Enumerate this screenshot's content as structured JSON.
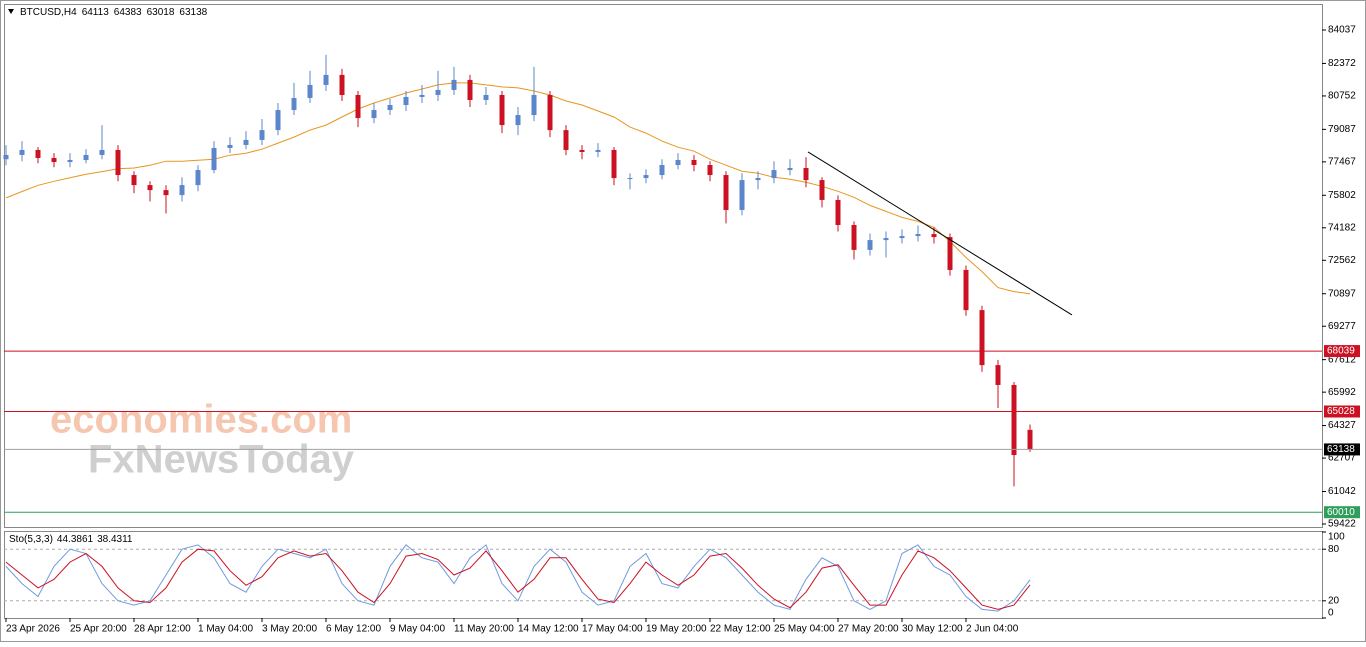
{
  "chart_data": {
    "type": "candlestick",
    "title": "BTCUSD,H4",
    "xlim": [
      -0.125,
      82.25
    ],
    "xticks": [
      {
        "value": 0,
        "label": "23 Apr 2026"
      },
      {
        "value": 4,
        "label": "25 Apr 20:00"
      },
      {
        "value": 8,
        "label": "28 Apr 12:00"
      },
      {
        "value": 12,
        "label": "1 May 04:00"
      },
      {
        "value": 16,
        "label": "3 May 20:00"
      },
      {
        "value": 20,
        "label": "6 May 12:00"
      },
      {
        "value": 24,
        "label": "9 May 04:00"
      },
      {
        "value": 28,
        "label": "11 May 20:00"
      },
      {
        "value": 32,
        "label": "14 May 12:00"
      },
      {
        "value": 36,
        "label": "17 May 04:00"
      },
      {
        "value": 40,
        "label": "19 May 20:00"
      },
      {
        "value": 44,
        "label": "22 May 12:00"
      },
      {
        "value": 48,
        "label": "25 May 04:00"
      },
      {
        "value": 52,
        "label": "27 May 20:00"
      },
      {
        "value": 56,
        "label": "30 May 12:00"
      },
      {
        "value": 60,
        "label": "2 Jun 04:00"
      }
    ],
    "ylim": [
      59273,
      85333
    ],
    "yticks": [
      84037,
      82372,
      80752,
      79087,
      77467,
      75802,
      74182,
      72562,
      70897,
      69277,
      67612,
      65992,
      64327,
      62707,
      61042,
      59422
    ],
    "up_color": "#5b86c9",
    "down_color": "#cc1122",
    "open": [
      77600,
      77810,
      78060,
      77660,
      77460,
      77560,
      77810,
      78060,
      76810,
      76310,
      76060,
      75810,
      76310,
      77060,
      78160,
      78310,
      78560,
      79050,
      80050,
      80650,
      81300,
      81800,
      80800,
      79650,
      80050,
      80300,
      80700,
      80800,
      81050,
      81550,
      80550,
      80800,
      79300,
      79800,
      80800,
      79050,
      78060,
      77960,
      78060,
      76660,
      76660,
      76810,
      77310,
      77560,
      77310,
      76810,
      75070,
      76560,
      76660,
      77060,
      77160,
      76560,
      75570,
      74320,
      73080,
      73570,
      73670,
      73770,
      73870,
      73720,
      72080,
      70080,
      67340,
      66350,
      64113
    ],
    "high": [
      78300,
      78500,
      78200,
      77900,
      77900,
      78100,
      79300,
      78300,
      77000,
      76500,
      76300,
      76700,
      77300,
      78500,
      78700,
      79000,
      79600,
      80400,
      81400,
      82000,
      82800,
      82100,
      81000,
      80400,
      80600,
      81000,
      81300,
      82000,
      82200,
      81800,
      81200,
      81000,
      80200,
      82200,
      81000,
      79300,
      78300,
      78400,
      78200,
      76900,
      77100,
      77600,
      77900,
      77800,
      77500,
      77000,
      76900,
      77000,
      77500,
      77600,
      77700,
      76700,
      75800,
      74500,
      73900,
      74000,
      74100,
      74300,
      74200,
      73900,
      72300,
      70300,
      67600,
      66500,
      64383
    ],
    "low": [
      77300,
      77500,
      77400,
      77200,
      77200,
      77400,
      77600,
      76500,
      75900,
      75500,
      74900,
      75500,
      76000,
      76900,
      77900,
      78100,
      78300,
      78800,
      79800,
      80400,
      81000,
      80500,
      79200,
      79400,
      79800,
      80000,
      80400,
      80500,
      80800,
      80200,
      80300,
      78900,
      78800,
      79500,
      78700,
      77800,
      77600,
      77700,
      76300,
      76100,
      76400,
      76600,
      77100,
      77000,
      76500,
      74400,
      74800,
      76100,
      76400,
      76800,
      76200,
      75200,
      74000,
      72600,
      72800,
      72700,
      73400,
      73500,
      73400,
      71800,
      69800,
      67000,
      65200,
      61300,
      63018
    ],
    "close": [
      77810,
      78060,
      77660,
      77460,
      77560,
      77810,
      78060,
      76810,
      76310,
      76060,
      75810,
      76310,
      77060,
      78160,
      78310,
      78560,
      79050,
      80050,
      80650,
      81300,
      81800,
      80800,
      79650,
      80050,
      80300,
      80700,
      80800,
      81050,
      81550,
      80550,
      80800,
      79300,
      79800,
      80800,
      79050,
      78060,
      77960,
      78060,
      76660,
      76660,
      76810,
      77310,
      77560,
      77310,
      76810,
      75070,
      76560,
      76660,
      77060,
      77160,
      76560,
      75570,
      74320,
      73080,
      73570,
      73670,
      73770,
      73870,
      73720,
      72080,
      70080,
      67340,
      66350,
      62860,
      63138
    ],
    "ma": {
      "color": "#e8961e",
      "values": [
        75670,
        75990,
        76300,
        76500,
        76680,
        76850,
        76980,
        77120,
        77160,
        77300,
        77500,
        77500,
        77550,
        77600,
        77800,
        77900,
        78100,
        78400,
        78700,
        79050,
        79300,
        79700,
        80100,
        80400,
        80650,
        80900,
        81100,
        81300,
        81400,
        81400,
        81300,
        81200,
        81150,
        81000,
        80800,
        80500,
        80300,
        80000,
        79700,
        79200,
        78900,
        78500,
        78200,
        78000,
        77600,
        77300,
        77000,
        76900,
        76700,
        76600,
        76450,
        76250,
        76000,
        75700,
        75300,
        75000,
        74700,
        74500,
        74200,
        73500,
        72700,
        72000,
        71200,
        71000,
        70900
      ]
    },
    "trendline": {
      "color": "#000000",
      "x": [
        50.125,
        66.625
      ],
      "y": [
        77960,
        69840
      ]
    },
    "levels": [
      {
        "value": 68039,
        "color": "#cc1122",
        "box": "#cc1122"
      },
      {
        "value": 65028,
        "color": "#cc1122",
        "box": "#cc1122"
      },
      {
        "value": 63138,
        "color": "#a0a0a0",
        "box": "#000000"
      },
      {
        "value": 60010,
        "color": "#2e9e5a",
        "box": "#2e9e5a"
      }
    ],
    "watermark": [
      "economies.com",
      "FxNewsToday"
    ],
    "stochastic": {
      "type": "line",
      "title": "Sto(5,3,3)",
      "ylim": [
        0,
        100
      ],
      "yticks": [
        0,
        20,
        80,
        100
      ],
      "levels": [
        20,
        80
      ],
      "series": [
        {
          "color": "#6f9be0",
          "values": [
            60,
            40,
            25,
            60,
            80,
            75,
            40,
            20,
            15,
            20,
            50,
            80,
            85,
            70,
            40,
            30,
            60,
            80,
            75,
            70,
            80,
            40,
            20,
            15,
            60,
            85,
            70,
            65,
            40,
            70,
            85,
            40,
            20,
            60,
            80,
            65,
            30,
            15,
            20,
            60,
            75,
            40,
            35,
            60,
            80,
            70,
            50,
            30,
            15,
            10,
            45,
            70,
            60,
            20,
            10,
            20,
            75,
            85,
            60,
            50,
            25,
            10,
            8,
            20,
            44.3861
          ]
        },
        {
          "color": "#cc1122",
          "values": [
            65,
            50,
            35,
            45,
            65,
            75,
            60,
            35,
            20,
            18,
            35,
            65,
            80,
            78,
            55,
            38,
            48,
            70,
            78,
            72,
            75,
            55,
            30,
            18,
            40,
            72,
            75,
            68,
            50,
            58,
            78,
            55,
            30,
            45,
            70,
            70,
            45,
            22,
            18,
            40,
            65,
            50,
            38,
            50,
            72,
            75,
            58,
            38,
            22,
            12,
            30,
            58,
            62,
            38,
            15,
            15,
            50,
            78,
            70,
            55,
            35,
            15,
            10,
            15,
            38.4311
          ]
        }
      ]
    }
  }
}
